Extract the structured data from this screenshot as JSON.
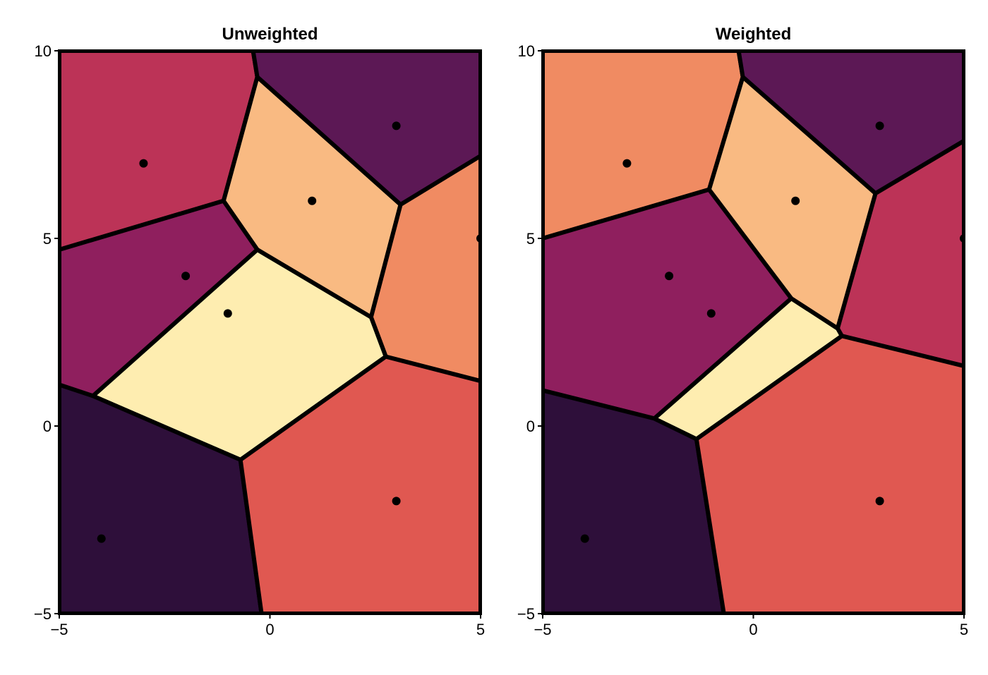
{
  "chart_data": [
    {
      "type": "voronoi",
      "title": "Unweighted",
      "xlim": [
        -5,
        5
      ],
      "ylim": [
        -5,
        10
      ],
      "xticks": [
        -5,
        0,
        5
      ],
      "yticks": [
        -5,
        0,
        5,
        10
      ],
      "xtick_labels": [
        "−5",
        "0",
        "5"
      ],
      "ytick_labels": [
        "−5",
        "0",
        "5",
        "10"
      ],
      "points": [
        {
          "x": -3,
          "y": 7
        },
        {
          "x": 3,
          "y": 8
        },
        {
          "x": 1,
          "y": 6
        },
        {
          "x": -2,
          "y": 4
        },
        {
          "x": -1,
          "y": 3
        },
        {
          "x": 5,
          "y": 5
        },
        {
          "x": -4,
          "y": -3
        },
        {
          "x": 3,
          "y": -2
        }
      ],
      "cells": [
        {
          "color": "#bc3357",
          "vertices": [
            [
              -5,
              10
            ],
            [
              -0.4,
              10
            ],
            [
              -0.3,
              9.3
            ],
            [
              -1.1,
              6
            ],
            [
              -5,
              4.7
            ]
          ]
        },
        {
          "color": "#5c1855",
          "vertices": [
            [
              -0.4,
              10
            ],
            [
              5,
              10
            ],
            [
              5,
              7.2
            ],
            [
              3.1,
              5.9
            ],
            [
              -0.3,
              9.3
            ]
          ]
        },
        {
          "color": "#f9ba82",
          "vertices": [
            [
              -0.3,
              9.3
            ],
            [
              3.1,
              5.9
            ],
            [
              2.4,
              2.9
            ],
            [
              -0.3,
              4.7
            ],
            [
              -1.1,
              6
            ]
          ]
        },
        {
          "color": "#f08b62",
          "vertices": [
            [
              3.1,
              5.9
            ],
            [
              5,
              7.2
            ],
            [
              5,
              1.2
            ],
            [
              2.75,
              1.85
            ],
            [
              2.4,
              2.9
            ]
          ]
        },
        {
          "color": "#8f1f5e",
          "vertices": [
            [
              -5,
              4.7
            ],
            [
              -1.1,
              6
            ],
            [
              -0.3,
              4.7
            ],
            [
              -4.2,
              0.8
            ],
            [
              -5,
              1.1
            ]
          ]
        },
        {
          "color": "#feedb0",
          "vertices": [
            [
              -0.3,
              4.7
            ],
            [
              2.4,
              2.9
            ],
            [
              2.75,
              1.85
            ],
            [
              -0.7,
              -0.9
            ],
            [
              -4.2,
              0.8
            ]
          ]
        },
        {
          "color": "#2e0f3a",
          "vertices": [
            [
              -5,
              1.1
            ],
            [
              -4.2,
              0.8
            ],
            [
              -0.7,
              -0.9
            ],
            [
              -0.2,
              -5
            ],
            [
              -5,
              -5
            ]
          ]
        },
        {
          "color": "#e05851",
          "vertices": [
            [
              -0.7,
              -0.9
            ],
            [
              2.75,
              1.85
            ],
            [
              5,
              1.2
            ],
            [
              5,
              -5
            ],
            [
              -0.2,
              -5
            ]
          ]
        }
      ]
    },
    {
      "type": "voronoi",
      "title": "Weighted",
      "xlim": [
        -5,
        5
      ],
      "ylim": [
        -5,
        10
      ],
      "xticks": [
        -5,
        0,
        5
      ],
      "yticks": [
        -5,
        0,
        5,
        10
      ],
      "xtick_labels": [
        "−5",
        "0",
        "5"
      ],
      "ytick_labels": [
        "−5",
        "0",
        "5",
        "10"
      ],
      "points": [
        {
          "x": -3,
          "y": 7
        },
        {
          "x": 3,
          "y": 8
        },
        {
          "x": 1,
          "y": 6
        },
        {
          "x": -2,
          "y": 4
        },
        {
          "x": -1,
          "y": 3
        },
        {
          "x": 5,
          "y": 5
        },
        {
          "x": -4,
          "y": -3
        },
        {
          "x": 3,
          "y": -2
        }
      ],
      "cells": [
        {
          "color": "#f08b62",
          "vertices": [
            [
              -5,
              10
            ],
            [
              -0.35,
              10
            ],
            [
              -0.25,
              9.3
            ],
            [
              -1.05,
              6.3
            ],
            [
              -5,
              5
            ]
          ]
        },
        {
          "color": "#5c1855",
          "vertices": [
            [
              -0.35,
              10
            ],
            [
              5,
              10
            ],
            [
              5,
              7.6
            ],
            [
              2.9,
              6.2
            ],
            [
              -0.25,
              9.3
            ]
          ]
        },
        {
          "color": "#f9ba82",
          "vertices": [
            [
              -0.25,
              9.3
            ],
            [
              2.9,
              6.2
            ],
            [
              2,
              2.6
            ],
            [
              0.9,
              3.4
            ],
            [
              -1.05,
              6.3
            ]
          ]
        },
        {
          "color": "#bc3357",
          "vertices": [
            [
              2.9,
              6.2
            ],
            [
              5,
              7.6
            ],
            [
              5,
              1.6
            ],
            [
              2.1,
              2.4
            ],
            [
              2,
              2.6
            ]
          ]
        },
        {
          "color": "#8f1f5e",
          "vertices": [
            [
              -5,
              5
            ],
            [
              -1.05,
              6.3
            ],
            [
              0.9,
              3.4
            ],
            [
              -2.35,
              0.2
            ],
            [
              -5,
              0.95
            ]
          ]
        },
        {
          "color": "#feedb0",
          "vertices": [
            [
              0.9,
              3.4
            ],
            [
              2,
              2.6
            ],
            [
              2.1,
              2.4
            ],
            [
              -1.35,
              -0.35
            ],
            [
              -2.35,
              0.2
            ]
          ]
        },
        {
          "color": "#2e0f3a",
          "vertices": [
            [
              -5,
              0.95
            ],
            [
              -2.35,
              0.2
            ],
            [
              -1.35,
              -0.35
            ],
            [
              -0.7,
              -5
            ],
            [
              -5,
              -5
            ]
          ]
        },
        {
          "color": "#e05851",
          "vertices": [
            [
              -1.35,
              -0.35
            ],
            [
              2.1,
              2.4
            ],
            [
              5,
              1.6
            ],
            [
              5,
              -5
            ],
            [
              -0.7,
              -5
            ]
          ]
        }
      ]
    }
  ]
}
